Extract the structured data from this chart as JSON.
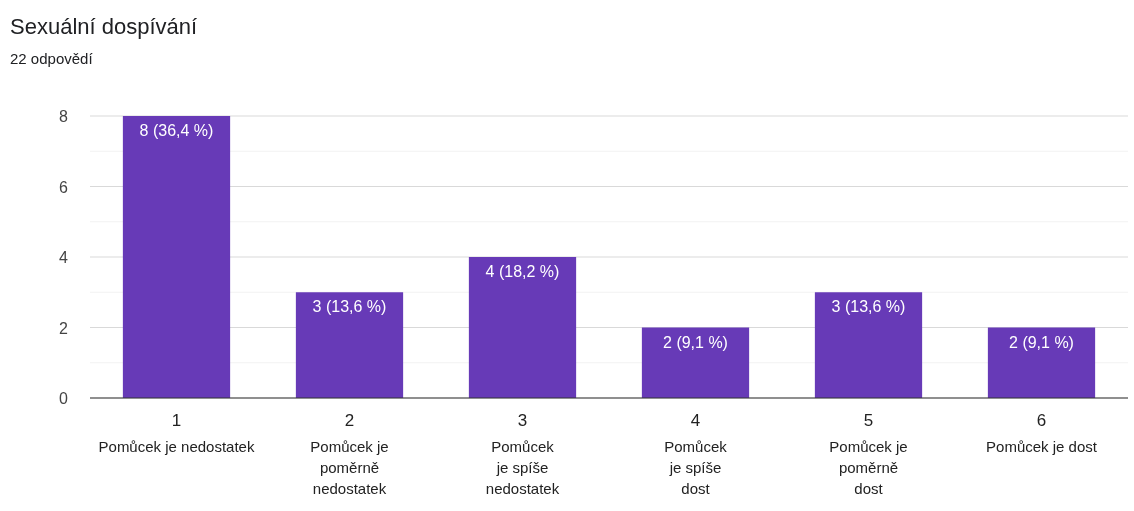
{
  "chart_data": {
    "type": "bar",
    "title": "Sexuální dospívání",
    "subtitle": "22 odpovědí",
    "categories": [
      "1\nPomůcek je nedostatek",
      "2\nPomůcek je\npoměrně\nnedostatek",
      "3\nPomůcek\nje spíše\nnedostatek",
      "4\nPomůcek\nje spíše\ndost",
      "5\nPomůcek je\npoměrně\ndost",
      "6\nPomůcek je dost"
    ],
    "values": [
      8,
      3,
      4,
      2,
      3,
      2
    ],
    "value_labels": [
      "8 (36,4 %)",
      "3 (13,6 %)",
      "4 (18,2 %)",
      "2 (9,1 %)",
      "3 (13,6 %)",
      "2 (9,1 %)"
    ],
    "color": "#673ab7",
    "ylim": [
      0,
      8
    ],
    "yticks": [
      0,
      {
        "value": 1,
        "label": null
      },
      2,
      {
        "value": 3,
        "label": null
      },
      4,
      {
        "value": 5,
        "label": null
      },
      6,
      {
        "value": 7,
        "label": null
      },
      8
    ],
    "grid": "y"
  }
}
